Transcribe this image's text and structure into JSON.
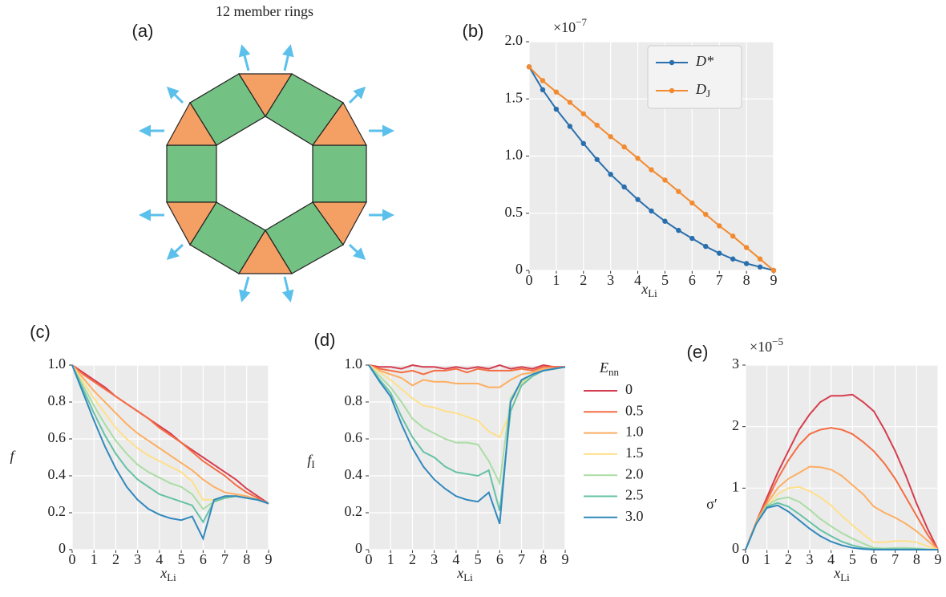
{
  "diagram": {
    "title": "12 member rings",
    "panel_label": "(a)"
  },
  "chart_data": [
    {
      "type": "line",
      "panel_label": "(b)",
      "markers": true,
      "grid": true,
      "legend": "upper right",
      "x_label": "x",
      "x_label_sub": "Li",
      "scale_base": "×10",
      "scale_exponent": "−7",
      "xlim": [
        0,
        9
      ],
      "xticks": [
        0,
        1,
        2,
        3,
        4,
        5,
        6,
        7,
        8,
        9
      ],
      "ylim": [
        0,
        2.0
      ],
      "yticks": [
        0,
        0.5,
        {
          "value": 1.0,
          "label": "1.0"
        },
        1.5,
        {
          "value": 2.0,
          "label": "2.0"
        }
      ],
      "x": [
        0,
        0.5,
        1,
        1.5,
        2,
        2.5,
        3,
        3.5,
        4,
        4.5,
        5,
        5.5,
        6,
        6.5,
        7,
        7.5,
        8,
        8.5,
        9
      ],
      "series": [
        {
          "name": "D*",
          "color": "#2a6fad",
          "values": [
            1.78,
            1.58,
            1.41,
            1.26,
            1.11,
            0.97,
            0.84,
            0.73,
            0.62,
            0.52,
            0.43,
            0.35,
            0.28,
            0.21,
            0.15,
            0.1,
            0.06,
            0.03,
            0.0
          ]
        },
        {
          "name": "D",
          "name_sub": "J",
          "color": "#f28a30",
          "values": [
            1.78,
            1.66,
            1.56,
            1.47,
            1.37,
            1.27,
            1.17,
            1.08,
            0.98,
            0.88,
            0.79,
            0.69,
            0.59,
            0.49,
            0.39,
            0.3,
            0.2,
            0.1,
            0.0
          ]
        }
      ]
    },
    {
      "type": "line",
      "panel_label": "(c)",
      "grid": true,
      "x_label": "x",
      "x_label_sub": "Li",
      "y_label": "f",
      "xlim": [
        0,
        9
      ],
      "xticks": [
        0,
        1,
        2,
        3,
        4,
        5,
        6,
        7,
        8,
        9
      ],
      "ylim": [
        0,
        1.0
      ],
      "yticks": [
        0,
        0.2,
        0.4,
        0.6,
        0.8,
        {
          "value": 1.0,
          "label": "1.0"
        }
      ],
      "x": [
        0,
        0.5,
        1,
        1.5,
        2,
        2.5,
        3,
        3.5,
        4,
        4.5,
        5,
        5.5,
        6,
        6.5,
        7,
        7.5,
        8,
        8.5,
        9
      ],
      "series": [
        {
          "color": "#d53e4f",
          "values": [
            1.0,
            0.96,
            0.92,
            0.88,
            0.83,
            0.79,
            0.75,
            0.71,
            0.67,
            0.63,
            0.58,
            0.54,
            0.5,
            0.46,
            0.42,
            0.38,
            0.33,
            0.29,
            0.25
          ]
        },
        {
          "color": "#f46d43",
          "values": [
            1.0,
            0.95,
            0.91,
            0.87,
            0.83,
            0.79,
            0.75,
            0.71,
            0.66,
            0.62,
            0.58,
            0.53,
            0.48,
            0.44,
            0.4,
            0.35,
            0.31,
            0.28,
            0.25
          ]
        },
        {
          "color": "#fdae61",
          "values": [
            1.0,
            0.93,
            0.86,
            0.8,
            0.74,
            0.68,
            0.63,
            0.59,
            0.55,
            0.51,
            0.47,
            0.43,
            0.38,
            0.34,
            0.31,
            0.3,
            0.29,
            0.27,
            0.25
          ]
        },
        {
          "color": "#fee08b",
          "values": [
            1.0,
            0.91,
            0.82,
            0.74,
            0.66,
            0.6,
            0.55,
            0.51,
            0.48,
            0.45,
            0.42,
            0.37,
            0.27,
            0.27,
            0.29,
            0.29,
            0.28,
            0.27,
            0.25
          ]
        },
        {
          "color": "#abdda4",
          "values": [
            1.0,
            0.89,
            0.78,
            0.68,
            0.59,
            0.52,
            0.46,
            0.42,
            0.39,
            0.36,
            0.34,
            0.3,
            0.22,
            0.26,
            0.28,
            0.29,
            0.28,
            0.27,
            0.25
          ]
        },
        {
          "color": "#66c2a5",
          "values": [
            1.0,
            0.87,
            0.74,
            0.62,
            0.52,
            0.44,
            0.38,
            0.34,
            0.3,
            0.28,
            0.26,
            0.24,
            0.15,
            0.26,
            0.28,
            0.29,
            0.28,
            0.27,
            0.25
          ]
        },
        {
          "color": "#3288bd",
          "values": [
            1.0,
            0.85,
            0.7,
            0.56,
            0.44,
            0.34,
            0.27,
            0.22,
            0.19,
            0.17,
            0.16,
            0.18,
            0.06,
            0.27,
            0.29,
            0.29,
            0.28,
            0.27,
            0.25
          ]
        }
      ]
    },
    {
      "type": "line",
      "panel_label": "(d)",
      "grid": true,
      "legend": "outside right",
      "legend_title": "E",
      "legend_title_sub": "nn",
      "x_label": "x",
      "x_label_sub": "Li",
      "y_label": "f",
      "y_label_sub": "I",
      "xlim": [
        0,
        9
      ],
      "xticks": [
        0,
        1,
        2,
        3,
        4,
        5,
        6,
        7,
        8,
        9
      ],
      "ylim": [
        0,
        1.0
      ],
      "yticks": [
        0,
        0.2,
        0.4,
        0.6,
        0.8,
        {
          "value": 1.0,
          "label": "1.0"
        }
      ],
      "x": [
        0,
        0.5,
        1,
        1.5,
        2,
        2.5,
        3,
        3.5,
        4,
        4.5,
        5,
        5.5,
        6,
        6.5,
        7,
        7.5,
        8,
        8.5,
        9
      ],
      "series": [
        {
          "name": "0",
          "color": "#d53e4f",
          "values": [
            1.0,
            0.99,
            0.99,
            0.98,
            1.0,
            0.99,
            0.99,
            0.98,
            0.99,
            0.98,
            0.99,
            0.98,
            1.0,
            0.98,
            0.99,
            0.98,
            1.0,
            0.99,
            0.99
          ]
        },
        {
          "name": "0.5",
          "color": "#f46d43",
          "values": [
            1.0,
            0.98,
            0.97,
            0.96,
            0.97,
            0.95,
            0.97,
            0.97,
            0.98,
            0.96,
            0.98,
            0.97,
            0.97,
            0.97,
            0.98,
            0.97,
            0.99,
            0.99,
            0.99
          ]
        },
        {
          "name": "1.0",
          "color": "#fdae61",
          "values": [
            1.0,
            0.97,
            0.95,
            0.93,
            0.89,
            0.92,
            0.91,
            0.91,
            0.9,
            0.9,
            0.9,
            0.88,
            0.88,
            0.92,
            0.95,
            0.96,
            0.98,
            0.98,
            0.99
          ]
        },
        {
          "name": "1.5",
          "color": "#fee08b",
          "values": [
            1.0,
            0.96,
            0.92,
            0.87,
            0.82,
            0.78,
            0.77,
            0.75,
            0.74,
            0.72,
            0.7,
            0.64,
            0.61,
            0.75,
            0.9,
            0.95,
            0.97,
            0.98,
            0.99
          ]
        },
        {
          "name": "2.0",
          "color": "#abdda4",
          "values": [
            1.0,
            0.94,
            0.88,
            0.8,
            0.71,
            0.66,
            0.63,
            0.6,
            0.58,
            0.58,
            0.57,
            0.48,
            0.36,
            0.82,
            0.91,
            0.95,
            0.97,
            0.98,
            0.99
          ]
        },
        {
          "name": "2.5",
          "color": "#66c2a5",
          "values": [
            1.0,
            0.92,
            0.85,
            0.72,
            0.61,
            0.53,
            0.5,
            0.45,
            0.42,
            0.41,
            0.4,
            0.43,
            0.21,
            0.75,
            0.89,
            0.94,
            0.97,
            0.98,
            0.99
          ]
        },
        {
          "name": "3.0",
          "color": "#3288bd",
          "values": [
            1.0,
            0.91,
            0.83,
            0.68,
            0.55,
            0.45,
            0.38,
            0.33,
            0.29,
            0.27,
            0.26,
            0.31,
            0.14,
            0.8,
            0.92,
            0.95,
            0.97,
            0.98,
            0.99
          ]
        }
      ]
    },
    {
      "type": "line",
      "panel_label": "(e)",
      "grid": true,
      "x_label": "x",
      "x_label_sub": "Li",
      "y_label": "σ′",
      "scale_base": "×10",
      "scale_exponent": "−5",
      "xlim": [
        0,
        9
      ],
      "xticks": [
        0,
        1,
        2,
        3,
        4,
        5,
        6,
        7,
        8,
        9
      ],
      "ylim": [
        0,
        3
      ],
      "yticks": [
        0,
        1,
        2,
        3
      ],
      "x": [
        0,
        0.5,
        1,
        1.5,
        2,
        2.5,
        3,
        3.5,
        4,
        4.5,
        5,
        5.5,
        6,
        6.5,
        7,
        7.5,
        8,
        8.5,
        9
      ],
      "series": [
        {
          "color": "#d53e4f",
          "values": [
            0,
            0.45,
            0.85,
            1.25,
            1.6,
            1.95,
            2.2,
            2.4,
            2.5,
            2.5,
            2.52,
            2.4,
            2.25,
            1.95,
            1.6,
            1.2,
            0.75,
            0.35,
            0
          ]
        },
        {
          "color": "#f46d43",
          "values": [
            0,
            0.45,
            0.8,
            1.15,
            1.45,
            1.7,
            1.88,
            1.95,
            1.98,
            1.95,
            1.88,
            1.75,
            1.6,
            1.4,
            1.15,
            0.85,
            0.55,
            0.25,
            0
          ]
        },
        {
          "color": "#fdae61",
          "values": [
            0,
            0.45,
            0.75,
            1.0,
            1.15,
            1.25,
            1.35,
            1.34,
            1.3,
            1.2,
            1.05,
            0.9,
            0.7,
            0.6,
            0.52,
            0.42,
            0.3,
            0.15,
            0
          ]
        },
        {
          "color": "#fee08b",
          "values": [
            0,
            0.42,
            0.7,
            0.9,
            1.0,
            1.02,
            0.95,
            0.85,
            0.72,
            0.55,
            0.4,
            0.25,
            0.12,
            0.12,
            0.14,
            0.14,
            0.12,
            0.06,
            0
          ]
        },
        {
          "color": "#abdda4",
          "values": [
            0,
            0.42,
            0.72,
            0.82,
            0.85,
            0.78,
            0.65,
            0.5,
            0.38,
            0.27,
            0.18,
            0.1,
            0.03,
            0.02,
            0.03,
            0.03,
            0.02,
            0.01,
            0
          ]
        },
        {
          "color": "#66c2a5",
          "values": [
            0,
            0.42,
            0.7,
            0.76,
            0.7,
            0.58,
            0.45,
            0.32,
            0.22,
            0.13,
            0.07,
            0.03,
            0.01,
            0.01,
            0.01,
            0.01,
            0.01,
            0,
            0
          ]
        },
        {
          "color": "#3288bd",
          "values": [
            0,
            0.42,
            0.68,
            0.72,
            0.62,
            0.48,
            0.34,
            0.22,
            0.13,
            0.07,
            0.03,
            0.01,
            0,
            0,
            0,
            0,
            0,
            0,
            0
          ]
        }
      ]
    }
  ]
}
